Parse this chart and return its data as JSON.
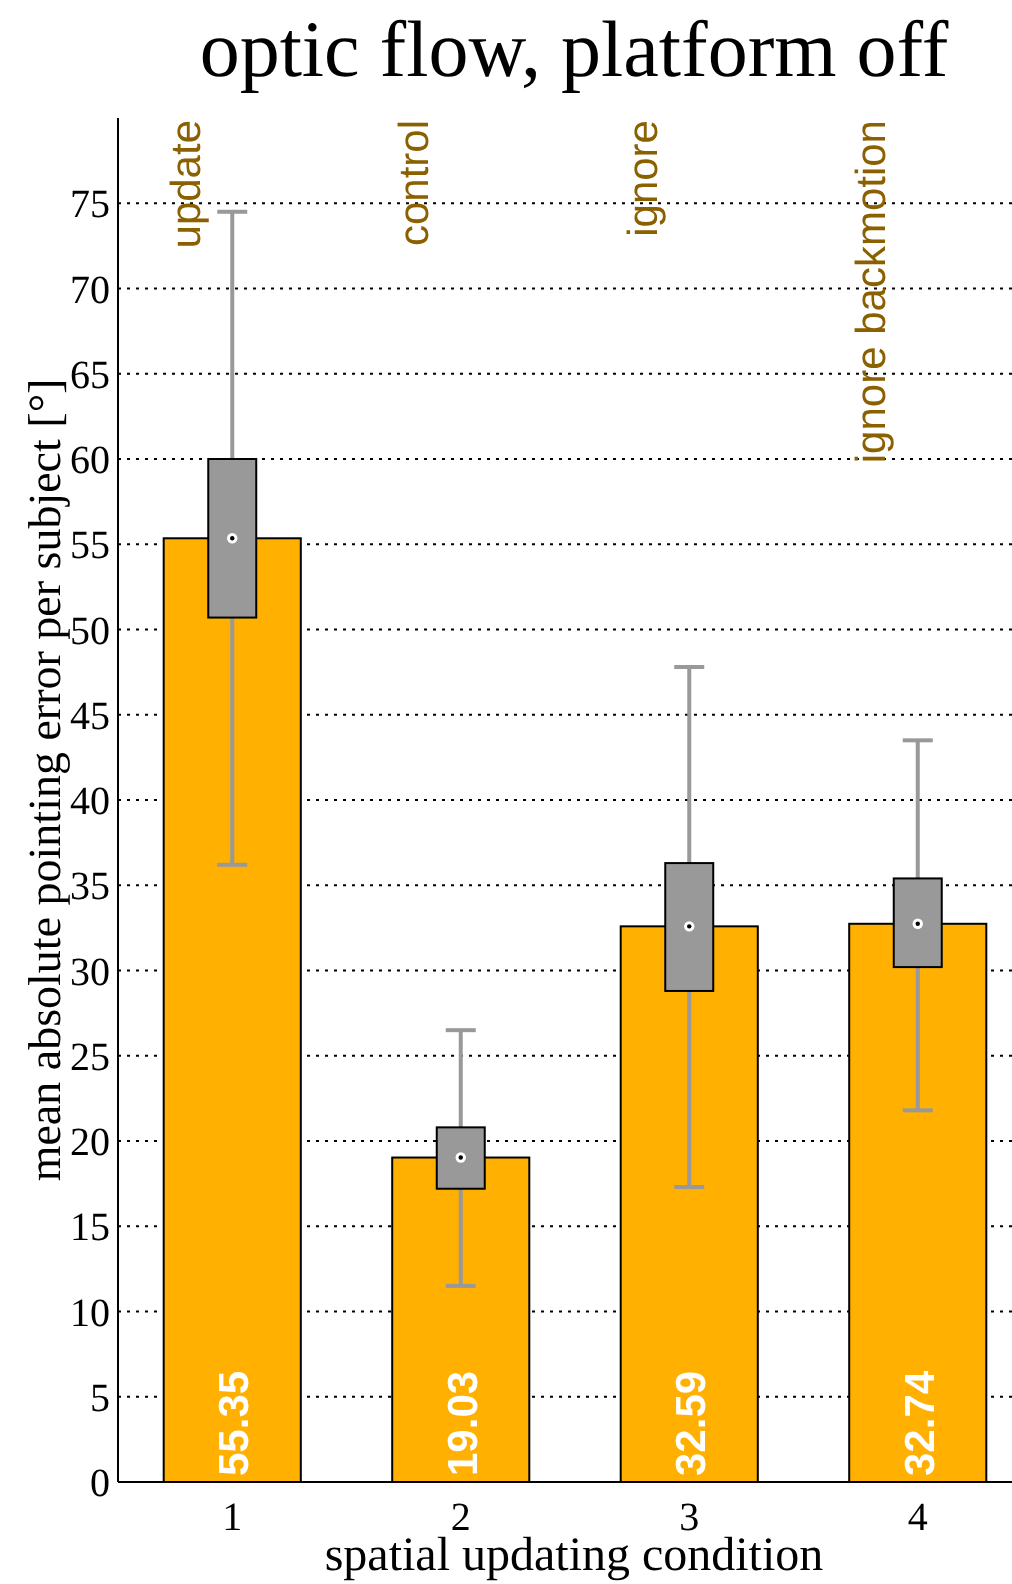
{
  "chart_data": {
    "type": "bar",
    "title": "optic flow, platform off",
    "xlabel": "spatial updating condition",
    "ylabel": "mean absolute pointing error per subject [°]",
    "categories": [
      "1",
      "2",
      "3",
      "4"
    ],
    "series": [
      {
        "color": "#ffb000",
        "values": [
          55.35,
          19.03,
          32.59,
          32.74
        ]
      },
      {
        "type": "box",
        "color": "#999999",
        "boxes": [
          {
            "low": 36.2,
            "q1": 50.7,
            "median": 55.35,
            "q3": 60,
            "high": 74.5
          },
          {
            "low": 11.5,
            "q1": 17.2,
            "median": 19.03,
            "q3": 20.8,
            "high": 26.5
          },
          {
            "low": 17.3,
            "q1": 28.8,
            "median": 32.59,
            "q3": 36.3,
            "high": 47.8
          },
          {
            "low": 21.8,
            "q1": 30.2,
            "median": 32.74,
            "q3": 35.4,
            "high": 43.5
          }
        ]
      }
    ],
    "annotations": [
      "update",
      "control",
      "ignore",
      "ignore backmotion"
    ],
    "data_labels": true,
    "grid": "y",
    "ylim": [
      0,
      80
    ],
    "yticks": [
      0,
      5,
      10,
      15,
      20,
      25,
      30,
      35,
      40,
      45,
      50,
      55,
      60,
      65,
      70,
      75
    ]
  }
}
